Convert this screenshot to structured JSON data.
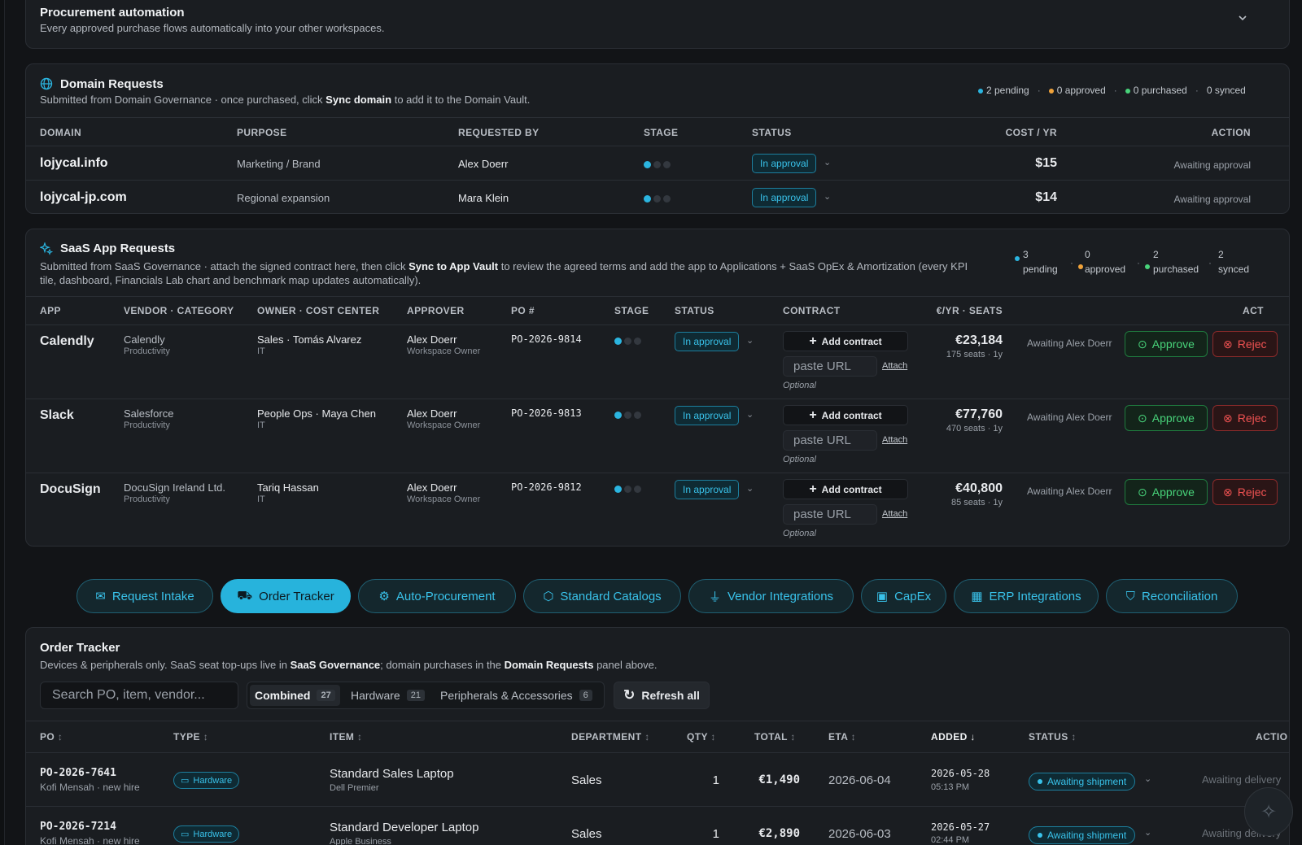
{
  "automation": {
    "title": "Procurement automation",
    "subtitle": "Every approved purchase flows automatically into your other workspaces."
  },
  "domains": {
    "title": "Domain Requests",
    "subtitle_a": "Submitted from Domain Governance · once purchased, click ",
    "subtitle_b": "Sync domain",
    "subtitle_c": " to add it to the Domain Vault.",
    "stats": {
      "pending": "2 pending",
      "approved": "0 approved",
      "purchased": "0 purchased",
      "synced": "0 synced",
      "sep": "·"
    },
    "columns": [
      "DOMAIN",
      "PURPOSE",
      "REQUESTED BY",
      "STAGE",
      "STATUS",
      "COST / YR",
      "ACTION"
    ],
    "rows": [
      {
        "domain": "lojycal.info",
        "purpose": "Marketing / Brand",
        "requested_by": "Alex Doerr",
        "status": "In approval",
        "cost": "$15",
        "action": "Awaiting approval"
      },
      {
        "domain": "lojycal-jp.com",
        "purpose": "Regional expansion",
        "requested_by": "Mara Klein",
        "status": "In approval",
        "cost": "$14",
        "action": "Awaiting approval"
      }
    ]
  },
  "saas": {
    "title": "SaaS App Requests",
    "subtitle_a": "Submitted from SaaS Governance · attach the signed contract here, then click ",
    "subtitle_b": "Sync to App Vault",
    "subtitle_c": " to review the agreed terms and add the app to Applications + SaaS OpEx & Amortization (every KPI",
    "subtitle_d": "tile, dashboard, Financials Lab chart and benchmark map updates automatically).",
    "stats": {
      "pending_n": "3",
      "pending_l": "pending",
      "approved_n": "0",
      "approved_l": "approved",
      "purchased_n": "2",
      "purchased_l": "purchased",
      "synced_n": "2",
      "synced_l": "synced",
      "sep": "·"
    },
    "columns": [
      "APP",
      "VENDOR · CATEGORY",
      "OWNER · COST CENTER",
      "APPROVER",
      "PO #",
      "STAGE",
      "STATUS",
      "CONTRACT",
      "€/YR · SEATS",
      "ACT"
    ],
    "add_contract": "Add contract",
    "paste_url": "paste URL",
    "attach": "Attach",
    "optional": "Optional",
    "approve": "Approve",
    "reject": "Rejec",
    "rows": [
      {
        "app": "Calendly",
        "vendor": "Calendly",
        "category": "Productivity",
        "owner": "Sales · Tomás Alvarez",
        "cost_center": "IT",
        "approver": "Alex Doerr",
        "approver_role": "Workspace Owner",
        "po": "PO-2026-9814",
        "status": "In approval",
        "cost": "€23,184",
        "seats": "175 seats · 1y",
        "awaiting": "Awaiting Alex Doerr"
      },
      {
        "app": "Slack",
        "vendor": "Salesforce",
        "category": "Productivity",
        "owner": "People Ops · Maya Chen",
        "cost_center": "IT",
        "approver": "Alex Doerr",
        "approver_role": "Workspace Owner",
        "po": "PO-2026-9813",
        "status": "In approval",
        "cost": "€77,760",
        "seats": "470 seats · 1y",
        "awaiting": "Awaiting Alex Doerr"
      },
      {
        "app": "DocuSign",
        "vendor": "DocuSign Ireland Ltd.",
        "category": "Productivity",
        "owner": "Tariq Hassan",
        "cost_center": "IT",
        "approver": "Alex Doerr",
        "approver_role": "Workspace Owner",
        "po": "PO-2026-9812",
        "status": "In approval",
        "cost": "€40,800",
        "seats": "85 seats · 1y",
        "awaiting": "Awaiting Alex Doerr"
      }
    ]
  },
  "tabs": [
    "Request Intake",
    "Order Tracker",
    "Auto-Procurement",
    "Standard Catalogs",
    "Vendor Integrations",
    "CapEx",
    "ERP Integrations",
    "Reconciliation"
  ],
  "orders": {
    "title": "Order Tracker",
    "subtitle_a": "Devices & peripherals only. SaaS seat top-ups live in ",
    "subtitle_b": "SaaS Governance",
    "subtitle_c": "; domain purchases in the ",
    "subtitle_d": "Domain Requests",
    "subtitle_e": " panel above.",
    "search_placeholder": "Search PO, item, vendor...",
    "segments": [
      {
        "label": "Combined",
        "count": "27"
      },
      {
        "label": "Hardware",
        "count": "21"
      },
      {
        "label": "Peripherals & Accessories",
        "count": "6"
      }
    ],
    "refresh": "Refresh all",
    "columns": [
      "PO",
      "TYPE",
      "ITEM",
      "DEPARTMENT",
      "QTY",
      "TOTAL",
      "ETA",
      "ADDED",
      "STATUS",
      "ACTIO"
    ],
    "sort_icon": "↕",
    "sort_desc": "↓",
    "rows": [
      {
        "po": "PO-2026-7641",
        "requester": "Kofi Mensah · new hire",
        "type": "Hardware",
        "item": "Standard Sales Laptop",
        "vendor": "Dell Premier",
        "department": "Sales",
        "qty": "1",
        "total": "€1,490",
        "eta": "2026-06-04",
        "added_date": "2026-05-28",
        "added_time": "05:13 PM",
        "status": "Awaiting shipment",
        "action": "Awaiting delivery"
      },
      {
        "po": "PO-2026-7214",
        "requester": "Kofi Mensah · new hire",
        "type": "Hardware",
        "item": "Standard Developer Laptop",
        "vendor": "Apple Business",
        "department": "Sales",
        "qty": "1",
        "total": "€2,890",
        "eta": "2026-06-03",
        "added_date": "2026-05-27",
        "added_time": "02:44 PM",
        "status": "Awaiting shipment",
        "action": "Awaiting delivery"
      }
    ]
  },
  "colors": {
    "accent": "#27b3dc",
    "approve": "#48d37a",
    "reject": "#f05252",
    "pending": "#2bb5e0",
    "approved": "#f0a23a",
    "purchased": "#48d37a"
  }
}
